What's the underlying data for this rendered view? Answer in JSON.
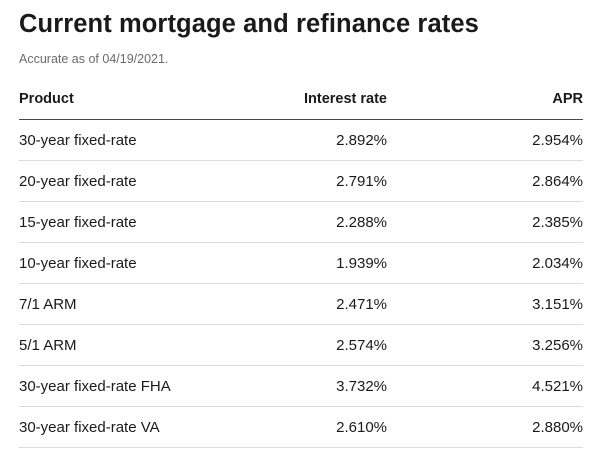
{
  "title": "Current mortgage and refinance rates",
  "subtitle": "Accurate as of 04/19/2021.",
  "table": {
    "headers": {
      "product": "Product",
      "interest_rate": "Interest rate",
      "apr": "APR"
    },
    "rows": [
      {
        "product": "30-year fixed-rate",
        "interest_rate": "2.892%",
        "apr": "2.954%"
      },
      {
        "product": "20-year fixed-rate",
        "interest_rate": "2.791%",
        "apr": "2.864%"
      },
      {
        "product": "15-year fixed-rate",
        "interest_rate": "2.288%",
        "apr": "2.385%"
      },
      {
        "product": "10-year fixed-rate",
        "interest_rate": "1.939%",
        "apr": "2.034%"
      },
      {
        "product": "7/1 ARM",
        "interest_rate": "2.471%",
        "apr": "3.151%"
      },
      {
        "product": "5/1 ARM",
        "interest_rate": "2.574%",
        "apr": "3.256%"
      },
      {
        "product": "30-year fixed-rate FHA",
        "interest_rate": "3.732%",
        "apr": "4.521%"
      },
      {
        "product": "30-year fixed-rate VA",
        "interest_rate": "2.610%",
        "apr": "2.880%"
      }
    ]
  },
  "colors": {
    "text": "#1a1a1a",
    "muted": "#6b6b6b",
    "header_rule": "#4a4a4a",
    "row_rule": "#dcdcdc"
  }
}
